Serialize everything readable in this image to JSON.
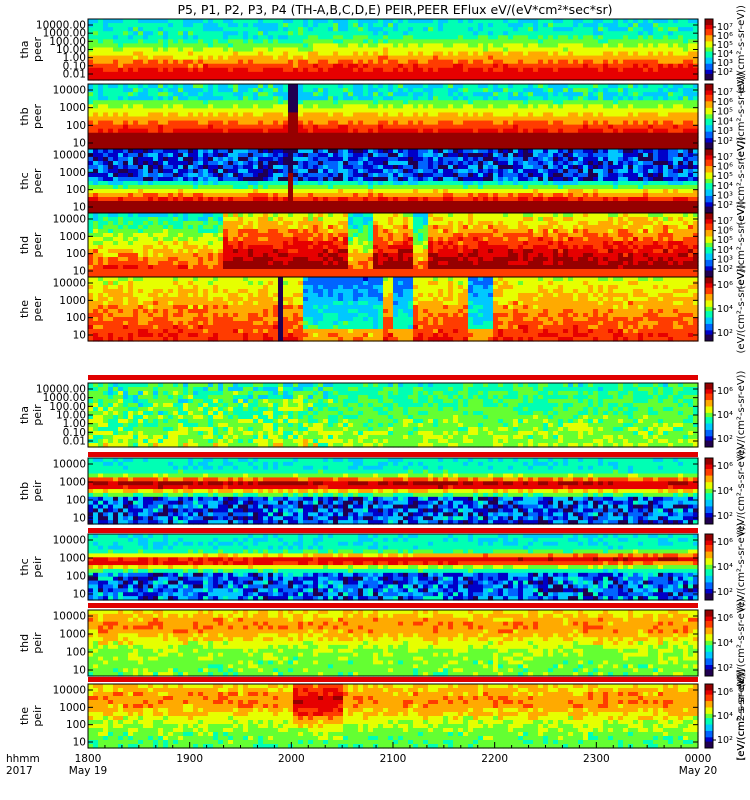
{
  "chart_data": {
    "type": "heatmap",
    "title": "P5, P1, P2, P3, P4 (TH-A,B,C,D,E) PEIR,PEER EFlux eV/(eV*cm²*sec*sr)",
    "x_label_line1": "hhmm",
    "x_label_line2": "2017",
    "x_range": [
      "2017-05-19 18:00",
      "2017-05-20 00:00"
    ],
    "x_ticks": [
      {
        "label": "1800",
        "sub": "May 19"
      },
      {
        "label": "1900",
        "sub": ""
      },
      {
        "label": "2000",
        "sub": ""
      },
      {
        "label": "2100",
        "sub": ""
      },
      {
        "label": "2200",
        "sub": ""
      },
      {
        "label": "2300",
        "sub": ""
      },
      {
        "label": "0000",
        "sub": "May 20"
      }
    ],
    "colorbar_label": "[eV/(cm2-s-sr-eV)]",
    "colorbar_label_short": "(eV/(cm²-s-sr-eV))",
    "colorbar_ticks": [
      "10²",
      "10⁴",
      "10⁶"
    ],
    "colorbar_ticks_dense": [
      "10²",
      "10³",
      "10⁴",
      "10⁵",
      "10⁶",
      "10⁷"
    ],
    "panels": [
      {
        "name": "tha peer",
        "probe": "tha",
        "species": "peer",
        "y_ticks": [
          "10000.00",
          "1000.00",
          "100.00",
          "10.00",
          "1.00",
          "0.10",
          "0.01"
        ],
        "y_scale": "log",
        "y_range": [
          0.01,
          20000
        ],
        "cb_ticks": "dense"
      },
      {
        "name": "thb peer",
        "probe": "thb",
        "species": "peer",
        "y_ticks": [
          "10000",
          "1000",
          "100",
          "10"
        ],
        "y_scale": "log",
        "y_range": [
          7,
          20000
        ],
        "cb_ticks": "dense"
      },
      {
        "name": "thc peer",
        "probe": "thc",
        "species": "peer",
        "y_ticks": [
          "10000",
          "1000",
          "100",
          "10"
        ],
        "y_scale": "log",
        "y_range": [
          7,
          20000
        ],
        "cb_ticks": "dense"
      },
      {
        "name": "thd peer",
        "probe": "thd",
        "species": "peer",
        "y_ticks": [
          "10000",
          "1000",
          "100",
          "10"
        ],
        "y_scale": "log",
        "y_range": [
          7,
          20000
        ],
        "cb_ticks": "dense"
      },
      {
        "name": "the peer",
        "probe": "the",
        "species": "peer",
        "y_ticks": [
          "10000",
          "1000",
          "100",
          "10"
        ],
        "y_scale": "log",
        "y_range": [
          7,
          20000
        ],
        "cb_ticks": "sparse"
      },
      {
        "name": "tha peir",
        "probe": "tha",
        "species": "peir",
        "y_ticks": [
          "10000.00",
          "1000.00",
          "100.00",
          "10.00",
          "1.00",
          "0.10",
          "0.01"
        ],
        "y_scale": "log",
        "y_range": [
          0.01,
          20000
        ],
        "cb_ticks": "sparse"
      },
      {
        "name": "thb peir",
        "probe": "thb",
        "species": "peir",
        "y_ticks": [
          "10000",
          "1000",
          "100",
          "10"
        ],
        "y_scale": "log",
        "y_range": [
          5,
          30000
        ],
        "cb_ticks": "sparse"
      },
      {
        "name": "thc peir",
        "probe": "thc",
        "species": "peir",
        "y_ticks": [
          "10000",
          "1000",
          "100",
          "10"
        ],
        "y_scale": "log",
        "y_range": [
          5,
          30000
        ],
        "cb_ticks": "sparse"
      },
      {
        "name": "thd peir",
        "probe": "thd",
        "species": "peir",
        "y_ticks": [
          "10000",
          "1000",
          "100",
          "10"
        ],
        "y_scale": "log",
        "y_range": [
          5,
          30000
        ],
        "cb_ticks": "sparse"
      },
      {
        "name": "the peir",
        "probe": "the",
        "species": "peir",
        "y_ticks": [
          "10000",
          "1000",
          "100",
          "10"
        ],
        "y_scale": "log",
        "y_range": [
          5,
          30000
        ],
        "cb_ticks": "sparse"
      }
    ],
    "colorscale": [
      "#200050",
      "#0000c8",
      "#0064ff",
      "#00c8ff",
      "#00ffb4",
      "#64ff32",
      "#e6ff00",
      "#ffaa00",
      "#ff3c00",
      "#e60000",
      "#960000"
    ]
  }
}
